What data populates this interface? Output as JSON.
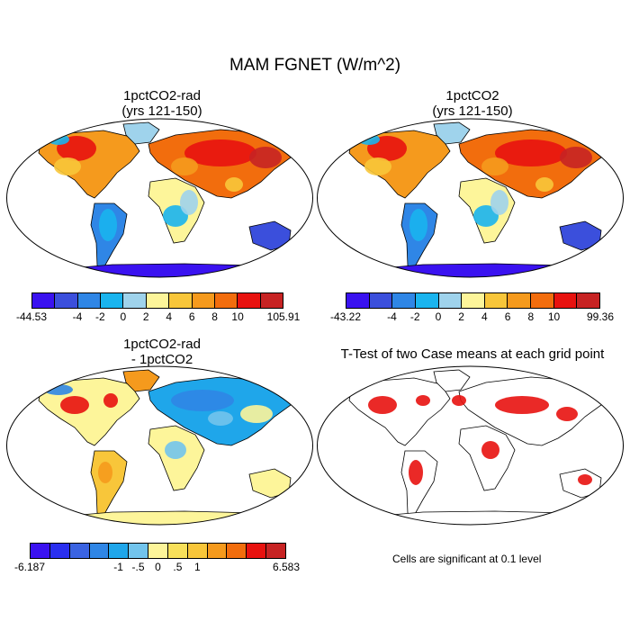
{
  "title": "MAM FGNET (W/m^2)",
  "panels": [
    {
      "title_line1": "1pctCO2-rad",
      "title_line2": "(yrs 121-150)"
    },
    {
      "title_line1": "1pctCO2",
      "title_line2": "(yrs 121-150)"
    },
    {
      "title_line1": "1pctCO2-rad",
      "title_line2": "- 1pctCO2"
    },
    {
      "title_line1": "T-Test of two Case means at each grid point",
      "title_line2": ""
    }
  ],
  "colorbars": [
    {
      "name": "abs1",
      "colors": [
        "#3a12f0",
        "#3b4fdc",
        "#2f86e6",
        "#1ab4ee",
        "#9fd3ec",
        "#fdf59a",
        "#f8c63a",
        "#f59a1d",
        "#f26d0d",
        "#e8120f",
        "#c72323"
      ],
      "labels": [
        "-44.53",
        "-4",
        "-2",
        "0",
        "2",
        "4",
        "6",
        "8",
        "10",
        "105.91"
      ]
    },
    {
      "name": "abs2",
      "colors": [
        "#3a12f0",
        "#3b4fdc",
        "#2f86e6",
        "#1ab4ee",
        "#9fd3ec",
        "#fdf59a",
        "#f8c63a",
        "#f59a1d",
        "#f26d0d",
        "#e8120f",
        "#c72323"
      ],
      "labels": [
        "-43.22",
        "-4",
        "-2",
        "0",
        "2",
        "4",
        "6",
        "8",
        "10",
        "99.36"
      ]
    },
    {
      "name": "diff",
      "colors": [
        "#3a12f0",
        "#2a2ff0",
        "#3a63e2",
        "#2f86e6",
        "#1fa6ea",
        "#72c4ec",
        "#fdf59a",
        "#f8e05a",
        "#f8c63a",
        "#f59a1d",
        "#f26d0d",
        "#e8120f",
        "#c72323"
      ],
      "labels": [
        "-6.187",
        "-1",
        "-.5",
        "0",
        ".5",
        "1",
        "6.583"
      ]
    }
  ],
  "note": "Cells are significant at 0.1 level"
}
